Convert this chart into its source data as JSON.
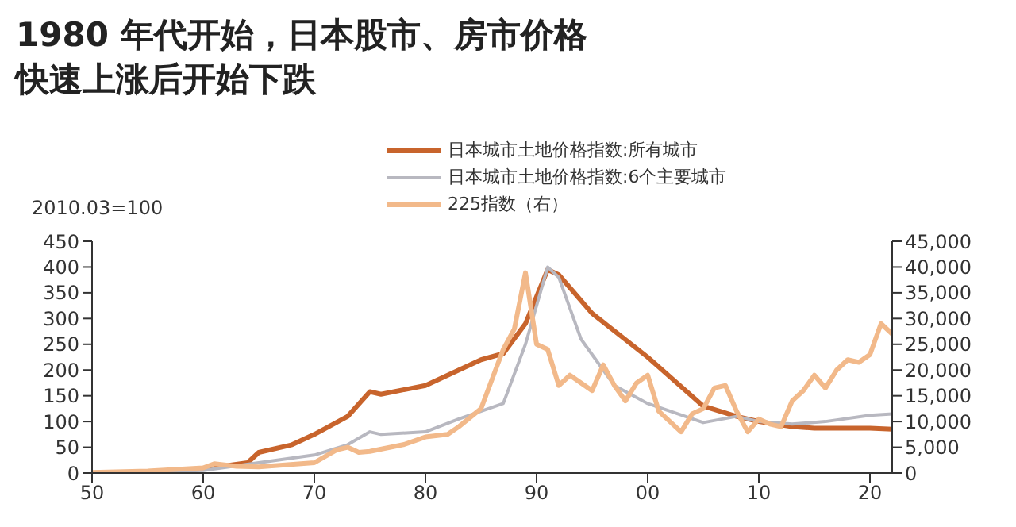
{
  "chart_data": {
    "type": "line",
    "title": "1980 年代开始，日本股市、房市价格快速上涨后开始下跌",
    "ylabel": "2010.03=100",
    "legend": "top",
    "grid": false,
    "marker": "none",
    "line_style": "solid",
    "xlim": [
      1950,
      2022
    ],
    "xticks": [
      {
        "value": 1950,
        "label": "50"
      },
      {
        "value": 1960,
        "label": "60"
      },
      {
        "value": 1970,
        "label": "70"
      },
      {
        "value": 1980,
        "label": "80"
      },
      {
        "value": 1990,
        "label": "90"
      },
      {
        "value": 2000,
        "label": "00"
      },
      {
        "value": 2010,
        "label": "10"
      },
      {
        "value": 2020,
        "label": "20"
      }
    ],
    "ylim": [
      0,
      450
    ],
    "yticks": [
      0,
      50,
      100,
      150,
      200,
      250,
      300,
      350,
      400,
      450
    ],
    "y2lim": [
      0,
      45000
    ],
    "y2ticks": [
      {
        "value": 0,
        "label": "0"
      },
      {
        "value": 5000,
        "label": "5,000"
      },
      {
        "value": 10000,
        "label": "10,000"
      },
      {
        "value": 15000,
        "label": "15,000"
      },
      {
        "value": 20000,
        "label": "20,000"
      },
      {
        "value": 25000,
        "label": "25,000"
      },
      {
        "value": 30000,
        "label": "30,000"
      },
      {
        "value": 35000,
        "label": "35,000"
      },
      {
        "value": 40000,
        "label": "40,000"
      },
      {
        "value": 45000,
        "label": "45,000"
      }
    ],
    "series": [
      {
        "name": "日本城市土地价格指数:所有城市",
        "color": "#c8642c",
        "x": [
          1950,
          1955,
          1960,
          1964,
          1965,
          1968,
          1970,
          1973,
          1975,
          1976,
          1980,
          1983,
          1985,
          1987,
          1989,
          1991,
          1992,
          1995,
          2000,
          2005,
          2008,
          2010,
          2013,
          2015,
          2020,
          2022
        ],
        "values": [
          0,
          2,
          8,
          20,
          40,
          55,
          75,
          110,
          158,
          153,
          170,
          200,
          220,
          232,
          290,
          395,
          385,
          310,
          225,
          130,
          110,
          100,
          90,
          87,
          87,
          85
        ]
      },
      {
        "name": "日本城市土地价格指数:6个主要城市",
        "color": "#b8b8c0",
        "x": [
          1950,
          1960,
          1965,
          1970,
          1973,
          1975,
          1976,
          1980,
          1983,
          1987,
          1989,
          1991,
          1992,
          1994,
          1997,
          2000,
          2005,
          2008,
          2010,
          2013,
          2016,
          2020,
          2022
        ],
        "values": [
          0,
          5,
          20,
          35,
          55,
          80,
          75,
          80,
          105,
          135,
          250,
          400,
          380,
          260,
          170,
          135,
          98,
          110,
          100,
          95,
          100,
          112,
          115
        ]
      },
      {
        "name": "225指数（右）",
        "color": "#f2b98a",
        "axis": "y2",
        "x": [
          1950,
          1955,
          1960,
          1961,
          1963,
          1965,
          1970,
          1972,
          1973,
          1974,
          1975,
          1978,
          1980,
          1982,
          1983,
          1985,
          1987,
          1988,
          1989,
          1990,
          1991,
          1992,
          1993,
          1995,
          1996,
          1997,
          1998,
          1999,
          2000,
          2001,
          2002,
          2003,
          2004,
          2005,
          2006,
          2007,
          2008,
          2009,
          2010,
          2011,
          2012,
          2013,
          2014,
          2015,
          2016,
          2017,
          2018,
          2019,
          2020,
          2021,
          2022
        ],
        "values": [
          100,
          400,
          1000,
          1800,
          1300,
          1200,
          2000,
          4500,
          5000,
          4000,
          4200,
          5500,
          7000,
          7500,
          9000,
          12500,
          24000,
          28000,
          38900,
          25000,
          24000,
          17000,
          19000,
          16000,
          21000,
          17000,
          14000,
          17500,
          19000,
          12000,
          10000,
          8000,
          11500,
          12500,
          16500,
          17000,
          12000,
          8000,
          10500,
          9500,
          9000,
          14000,
          16000,
          19000,
          16500,
          20000,
          22000,
          21500,
          23000,
          29000,
          27000
        ]
      }
    ]
  }
}
